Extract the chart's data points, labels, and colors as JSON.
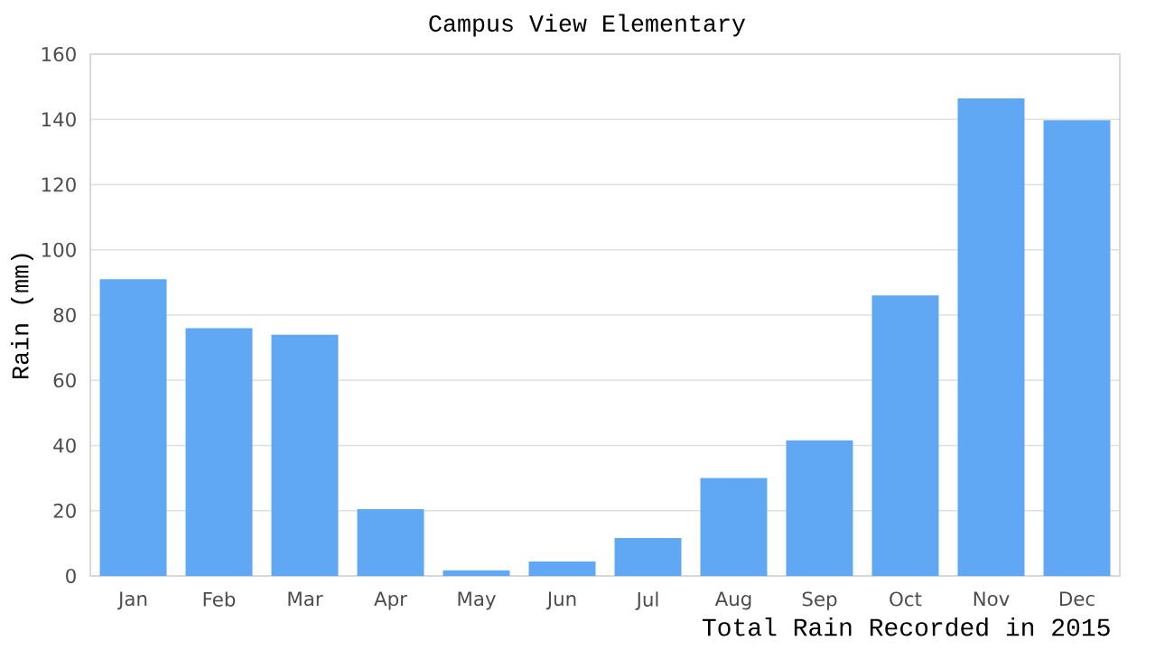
{
  "chart_data": {
    "type": "bar",
    "title": "Campus View Elementary",
    "ylabel": "Rain (mm)",
    "annotations": [
      "Total Rain Recorded in 2015"
    ],
    "categories": [
      "Jan",
      "Feb",
      "Mar",
      "Apr",
      "May",
      "Jun",
      "Jul",
      "Aug",
      "Sep",
      "Oct",
      "Nov",
      "Dec"
    ],
    "values": [
      91,
      76,
      74,
      20.5,
      1.7,
      4.4,
      11.6,
      30,
      41.6,
      86,
      146.4,
      139.7
    ],
    "color": "#61a8f4",
    "ylim": [
      0,
      160
    ],
    "yticks": [
      0,
      20,
      40,
      60,
      80,
      100,
      120,
      140,
      160
    ],
    "grid": "y"
  }
}
